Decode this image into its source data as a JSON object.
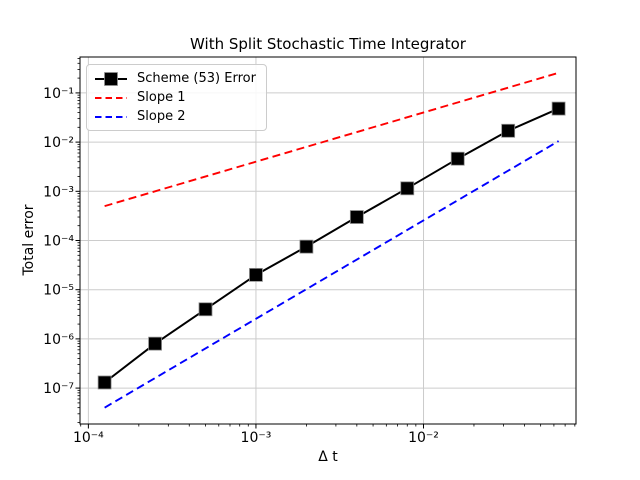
{
  "chart_data": {
    "type": "line",
    "title": "With Split Stochastic Time Integrator",
    "xlabel": "Δ t",
    "ylabel": "Total error",
    "x_scale": "log",
    "y_scale": "log",
    "xlim_log": [
      -4.05,
      -1.09
    ],
    "ylim_log": [
      -7.73,
      -0.27
    ],
    "x_tick_logs": [
      -4,
      -3,
      -2
    ],
    "x_tick_labels": [
      "10⁻⁴",
      "10⁻³",
      "10⁻²"
    ],
    "y_tick_logs": [
      -1,
      -2,
      -3,
      -4,
      -5,
      -6,
      -7
    ],
    "y_tick_labels": [
      "10⁻¹",
      "10⁻²",
      "10⁻³",
      "10⁻⁴",
      "10⁻⁵",
      "10⁻⁶",
      "10⁻⁷"
    ],
    "grid": true,
    "grid_color": "#cccccc",
    "spine_color": "#000000",
    "legend_position": "upper-left",
    "series": [
      {
        "name": "Scheme (53) Error",
        "color": "#000000",
        "style": "solid",
        "marker": "square",
        "x": [
          0.000125,
          0.00025,
          0.0005,
          0.001,
          0.002,
          0.004,
          0.008,
          0.016,
          0.032,
          0.064
        ],
        "y": [
          1.3e-07,
          8e-07,
          4e-06,
          2e-05,
          7.5e-05,
          0.0003,
          0.00115,
          0.0046,
          0.017,
          0.048
        ]
      },
      {
        "name": "Slope 1",
        "color": "#ff0000",
        "style": "dashed",
        "marker": null,
        "x": [
          0.000125,
          0.064
        ],
        "y": [
          0.0005,
          0.256
        ]
      },
      {
        "name": "Slope 2",
        "color": "#0000ff",
        "style": "dashed",
        "marker": null,
        "x": [
          0.000125,
          0.064
        ],
        "y": [
          4e-08,
          0.0105
        ]
      }
    ]
  }
}
